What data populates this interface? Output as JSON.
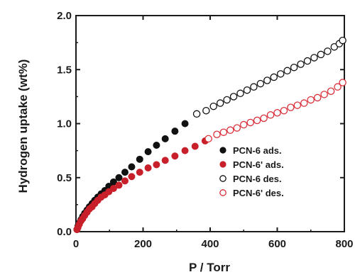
{
  "chart_data": {
    "type": "scatter",
    "xlabel": "P / Torr",
    "ylabel": "Hydrogen uptake (wt%)",
    "xlim": [
      0,
      800
    ],
    "ylim": [
      0,
      2.0
    ],
    "xticks": [
      0,
      200,
      400,
      600,
      800
    ],
    "yticks": [
      0.0,
      0.5,
      1.0,
      1.5,
      2.0
    ],
    "xtick_labels": [
      "0",
      "200",
      "400",
      "600",
      "800"
    ],
    "ytick_labels": [
      "0.0",
      "0.5",
      "1.0",
      "1.5",
      "2.0"
    ],
    "grid": false,
    "legend_position": "middle-right",
    "series": [
      {
        "name": "PCN-6 ads.",
        "color": "#111111",
        "marker": "filled-circle",
        "x": [
          3,
          6,
          10,
          15,
          20,
          26,
          33,
          40,
          48,
          56,
          65,
          75,
          86,
          98,
          112,
          128,
          146,
          166,
          190,
          215,
          240,
          266,
          295,
          325
        ],
        "y": [
          0.02,
          0.05,
          0.08,
          0.11,
          0.14,
          0.17,
          0.2,
          0.23,
          0.26,
          0.29,
          0.32,
          0.35,
          0.38,
          0.42,
          0.46,
          0.5,
          0.55,
          0.6,
          0.67,
          0.74,
          0.8,
          0.86,
          0.93,
          1.0
        ]
      },
      {
        "name": "PCN-6' ads.",
        "color": "#c8202a",
        "marker": "filled-circle",
        "x": [
          3,
          6,
          10,
          15,
          20,
          26,
          33,
          40,
          48,
          56,
          65,
          75,
          86,
          98,
          112,
          128,
          146,
          166,
          190,
          215,
          240,
          266,
          295,
          325,
          355,
          385
        ],
        "y": [
          0.02,
          0.04,
          0.07,
          0.1,
          0.12,
          0.15,
          0.18,
          0.21,
          0.23,
          0.26,
          0.29,
          0.32,
          0.34,
          0.37,
          0.4,
          0.43,
          0.47,
          0.51,
          0.55,
          0.59,
          0.62,
          0.66,
          0.7,
          0.75,
          0.79,
          0.84
        ]
      },
      {
        "name": "PCN-6 des.",
        "color": "#111111",
        "marker": "open-circle",
        "x": [
          360,
          388,
          410,
          430,
          450,
          470,
          490,
          510,
          530,
          550,
          570,
          590,
          610,
          630,
          650,
          670,
          690,
          710,
          730,
          750,
          770,
          785,
          795
        ],
        "y": [
          1.09,
          1.12,
          1.16,
          1.19,
          1.22,
          1.25,
          1.28,
          1.31,
          1.34,
          1.37,
          1.4,
          1.43,
          1.46,
          1.49,
          1.52,
          1.55,
          1.58,
          1.61,
          1.64,
          1.67,
          1.71,
          1.74,
          1.77
        ]
      },
      {
        "name": "PCN-6' des.",
        "color": "#d9303a",
        "marker": "open-circle",
        "x": [
          395,
          420,
          440,
          460,
          480,
          500,
          520,
          540,
          560,
          580,
          600,
          620,
          640,
          660,
          680,
          700,
          720,
          740,
          760,
          780,
          795
        ],
        "y": [
          0.86,
          0.9,
          0.92,
          0.94,
          0.96,
          0.99,
          1.01,
          1.03,
          1.05,
          1.08,
          1.1,
          1.12,
          1.15,
          1.17,
          1.19,
          1.22,
          1.24,
          1.27,
          1.3,
          1.34,
          1.38
        ]
      }
    ]
  }
}
